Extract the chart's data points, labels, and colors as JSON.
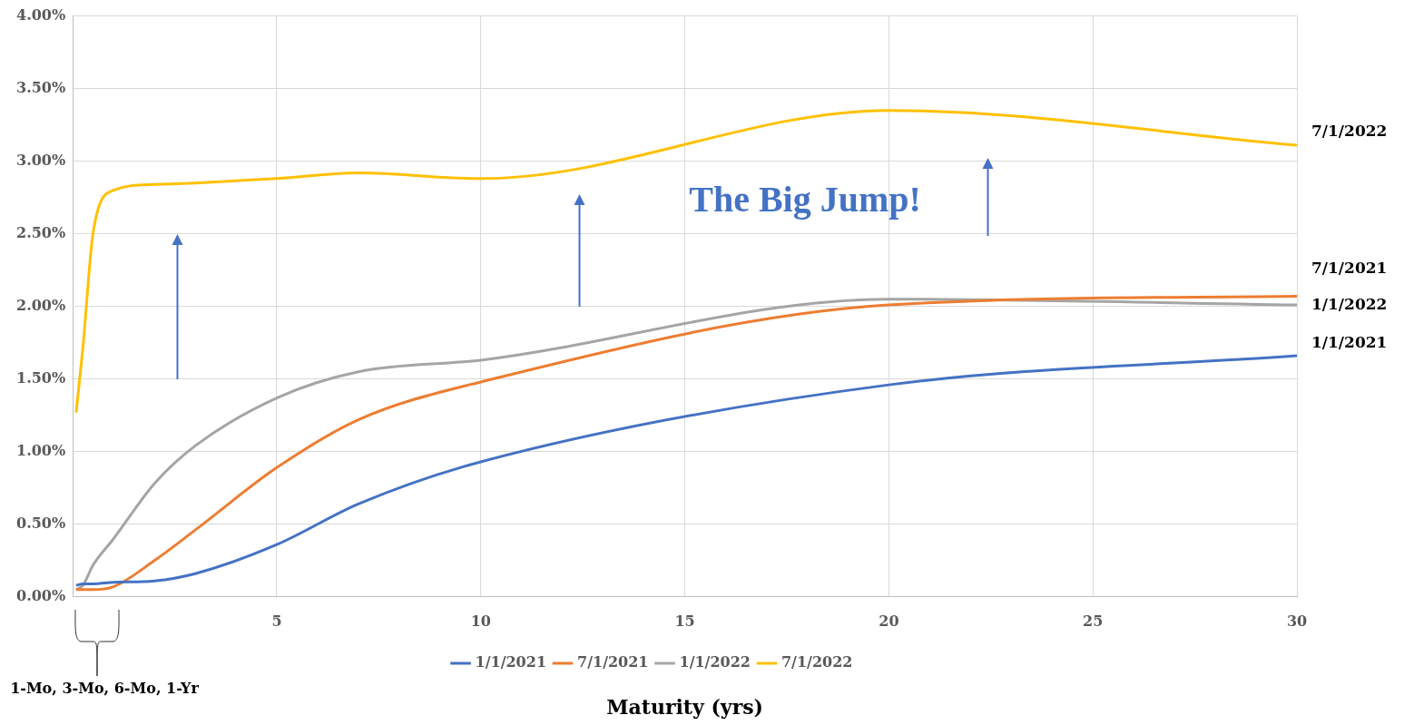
{
  "chart_data": {
    "type": "line",
    "xlabel": "Maturity (yrs)",
    "x": [
      0.083,
      0.25,
      0.5,
      1,
      2,
      3,
      5,
      7,
      10,
      20,
      30
    ],
    "series": [
      {
        "name": "1/1/2021",
        "color": "#4472c4",
        "values": [
          0.08,
          0.09,
          0.09,
          0.1,
          0.11,
          0.16,
          0.36,
          0.64,
          0.93,
          1.46,
          1.66
        ]
      },
      {
        "name": "7/1/2021",
        "color": "#ed7d31",
        "values": [
          0.05,
          0.05,
          0.05,
          0.07,
          0.25,
          0.46,
          0.89,
          1.22,
          1.48,
          2.01,
          2.07
        ]
      },
      {
        "name": "1/1/2022",
        "color": "#a5a5a5",
        "values": [
          0.05,
          0.08,
          0.22,
          0.4,
          0.78,
          1.04,
          1.37,
          1.55,
          1.63,
          2.05,
          2.01
        ]
      },
      {
        "name": "7/1/2022",
        "color": "#ffc000",
        "values": [
          1.27,
          1.72,
          2.51,
          2.8,
          2.84,
          2.85,
          2.88,
          2.92,
          2.88,
          3.35,
          3.11
        ]
      }
    ],
    "xlim": [
      0,
      30
    ],
    "xticks": [
      5,
      10,
      15,
      20,
      25,
      30
    ],
    "ylim": [
      0,
      4
    ],
    "yticks": [
      {
        "value": 0,
        "label": "0.00%"
      },
      {
        "value": 0.5,
        "label": "0.50%"
      },
      {
        "value": 1,
        "label": "1.00%"
      },
      {
        "value": 1.5,
        "label": "1.50%"
      },
      {
        "value": 2,
        "label": "2.00%"
      },
      {
        "value": 2.5,
        "label": "2.50%"
      },
      {
        "value": 3,
        "label": "3.00%"
      },
      {
        "value": 3.5,
        "label": "3.50%"
      },
      {
        "value": 4,
        "label": "4.00%"
      }
    ],
    "grid": true,
    "legend": "bottom",
    "marker": "none",
    "line_style": "solid",
    "annotations": [
      "The Big Jump!",
      "1-Mo, 3-Mo, 6-Mo, 1-Yr"
    ]
  }
}
